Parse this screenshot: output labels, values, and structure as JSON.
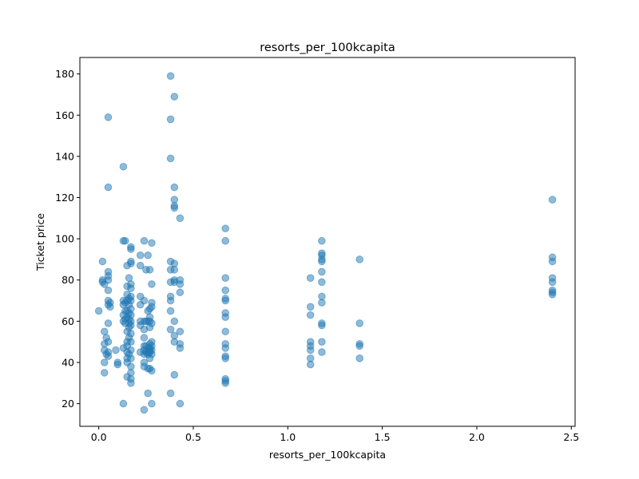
{
  "chart_data": {
    "type": "scatter",
    "title": "resorts_per_100kcapita",
    "xlabel": "resorts_per_100kcapita",
    "ylabel": "Ticket price",
    "xlim": [
      -0.1,
      2.52
    ],
    "ylim": [
      9,
      188
    ],
    "xticks": [
      0.0,
      0.5,
      1.0,
      1.5,
      2.0,
      2.5
    ],
    "xtick_labels": [
      "0.0",
      "0.5",
      "1.0",
      "1.5",
      "2.0",
      "2.5"
    ],
    "yticks": [
      20,
      40,
      60,
      80,
      100,
      120,
      140,
      160,
      180
    ],
    "ytick_labels": [
      "20",
      "40",
      "60",
      "80",
      "100",
      "120",
      "140",
      "160",
      "180"
    ],
    "grid": false,
    "marker_color": "#1f77b4",
    "marker_alpha": 0.5,
    "points": [
      [
        0.0,
        65
      ],
      [
        0.02,
        79
      ],
      [
        0.02,
        80
      ],
      [
        0.02,
        89
      ],
      [
        0.03,
        78
      ],
      [
        0.03,
        55
      ],
      [
        0.03,
        49
      ],
      [
        0.03,
        46
      ],
      [
        0.03,
        40
      ],
      [
        0.03,
        35
      ],
      [
        0.04,
        52
      ],
      [
        0.04,
        44
      ],
      [
        0.05,
        159
      ],
      [
        0.05,
        125
      ],
      [
        0.05,
        84
      ],
      [
        0.05,
        82
      ],
      [
        0.05,
        80
      ],
      [
        0.05,
        75
      ],
      [
        0.05,
        70
      ],
      [
        0.05,
        68
      ],
      [
        0.05,
        59
      ],
      [
        0.05,
        50
      ],
      [
        0.05,
        45
      ],
      [
        0.05,
        43
      ],
      [
        0.06,
        69
      ],
      [
        0.06,
        67
      ],
      [
        0.09,
        46
      ],
      [
        0.1,
        40
      ],
      [
        0.1,
        39
      ],
      [
        0.13,
        135
      ],
      [
        0.13,
        99
      ],
      [
        0.13,
        70
      ],
      [
        0.13,
        68
      ],
      [
        0.13,
        63
      ],
      [
        0.13,
        60
      ],
      [
        0.13,
        47
      ],
      [
        0.13,
        20
      ],
      [
        0.14,
        99
      ],
      [
        0.14,
        69
      ],
      [
        0.14,
        65
      ],
      [
        0.14,
        61
      ],
      [
        0.14,
        59
      ],
      [
        0.15,
        87
      ],
      [
        0.15,
        77
      ],
      [
        0.15,
        73
      ],
      [
        0.15,
        70
      ],
      [
        0.15,
        65
      ],
      [
        0.15,
        62
      ],
      [
        0.15,
        55
      ],
      [
        0.15,
        50
      ],
      [
        0.15,
        48
      ],
      [
        0.15,
        45
      ],
      [
        0.15,
        42
      ],
      [
        0.15,
        40
      ],
      [
        0.15,
        33
      ],
      [
        0.16,
        81
      ],
      [
        0.16,
        71
      ],
      [
        0.16,
        68
      ],
      [
        0.16,
        64
      ],
      [
        0.16,
        61
      ],
      [
        0.16,
        59
      ],
      [
        0.16,
        57
      ],
      [
        0.16,
        52
      ],
      [
        0.16,
        44
      ],
      [
        0.17,
        96
      ],
      [
        0.17,
        95
      ],
      [
        0.17,
        89
      ],
      [
        0.17,
        88
      ],
      [
        0.17,
        78
      ],
      [
        0.17,
        76
      ],
      [
        0.17,
        72
      ],
      [
        0.17,
        70
      ],
      [
        0.17,
        66
      ],
      [
        0.17,
        63
      ],
      [
        0.17,
        60
      ],
      [
        0.17,
        58
      ],
      [
        0.17,
        54
      ],
      [
        0.17,
        50
      ],
      [
        0.17,
        46
      ],
      [
        0.17,
        42
      ],
      [
        0.17,
        38
      ],
      [
        0.17,
        35
      ],
      [
        0.17,
        32
      ],
      [
        0.17,
        30
      ],
      [
        0.22,
        92
      ],
      [
        0.22,
        87
      ],
      [
        0.22,
        72
      ],
      [
        0.22,
        68
      ],
      [
        0.22,
        60
      ],
      [
        0.22,
        58
      ],
      [
        0.22,
        45
      ],
      [
        0.24,
        99
      ],
      [
        0.24,
        70
      ],
      [
        0.24,
        60
      ],
      [
        0.24,
        56
      ],
      [
        0.24,
        52
      ],
      [
        0.24,
        48
      ],
      [
        0.24,
        46
      ],
      [
        0.24,
        44
      ],
      [
        0.24,
        40
      ],
      [
        0.24,
        38
      ],
      [
        0.24,
        17
      ],
      [
        0.25,
        85
      ],
      [
        0.25,
        60
      ],
      [
        0.25,
        48
      ],
      [
        0.25,
        45
      ],
      [
        0.26,
        92
      ],
      [
        0.26,
        65
      ],
      [
        0.26,
        60
      ],
      [
        0.26,
        47
      ],
      [
        0.26,
        45
      ],
      [
        0.26,
        44
      ],
      [
        0.26,
        37
      ],
      [
        0.26,
        25
      ],
      [
        0.27,
        85
      ],
      [
        0.27,
        66
      ],
      [
        0.27,
        62
      ],
      [
        0.27,
        60
      ],
      [
        0.27,
        57
      ],
      [
        0.27,
        49
      ],
      [
        0.27,
        47
      ],
      [
        0.27,
        46
      ],
      [
        0.27,
        45
      ],
      [
        0.27,
        42
      ],
      [
        0.27,
        37
      ],
      [
        0.28,
        98
      ],
      [
        0.28,
        78
      ],
      [
        0.28,
        69
      ],
      [
        0.28,
        67
      ],
      [
        0.28,
        59
      ],
      [
        0.28,
        50
      ],
      [
        0.28,
        48
      ],
      [
        0.28,
        46
      ],
      [
        0.28,
        44
      ],
      [
        0.28,
        36
      ],
      [
        0.28,
        20
      ],
      [
        0.38,
        179
      ],
      [
        0.38,
        158
      ],
      [
        0.38,
        139
      ],
      [
        0.38,
        89
      ],
      [
        0.38,
        85
      ],
      [
        0.38,
        79
      ],
      [
        0.38,
        72
      ],
      [
        0.38,
        70
      ],
      [
        0.38,
        65
      ],
      [
        0.38,
        56
      ],
      [
        0.38,
        25
      ],
      [
        0.4,
        169
      ],
      [
        0.4,
        125
      ],
      [
        0.4,
        119
      ],
      [
        0.4,
        116
      ],
      [
        0.4,
        115
      ],
      [
        0.4,
        88
      ],
      [
        0.4,
        85
      ],
      [
        0.4,
        79
      ],
      [
        0.4,
        80
      ],
      [
        0.4,
        60
      ],
      [
        0.4,
        53
      ],
      [
        0.4,
        50
      ],
      [
        0.4,
        34
      ],
      [
        0.43,
        110
      ],
      [
        0.43,
        80
      ],
      [
        0.43,
        78
      ],
      [
        0.43,
        74
      ],
      [
        0.43,
        55
      ],
      [
        0.43,
        49
      ],
      [
        0.43,
        47
      ],
      [
        0.43,
        20
      ],
      [
        0.67,
        105
      ],
      [
        0.67,
        99
      ],
      [
        0.67,
        81
      ],
      [
        0.67,
        75
      ],
      [
        0.67,
        71
      ],
      [
        0.67,
        70
      ],
      [
        0.67,
        64
      ],
      [
        0.67,
        62
      ],
      [
        0.67,
        55
      ],
      [
        0.67,
        49
      ],
      [
        0.67,
        47
      ],
      [
        0.67,
        43
      ],
      [
        0.67,
        42
      ],
      [
        0.67,
        32
      ],
      [
        0.67,
        31
      ],
      [
        0.67,
        30
      ],
      [
        1.12,
        81
      ],
      [
        1.12,
        67
      ],
      [
        1.12,
        63
      ],
      [
        1.12,
        50
      ],
      [
        1.12,
        48
      ],
      [
        1.12,
        46
      ],
      [
        1.12,
        42
      ],
      [
        1.12,
        39
      ],
      [
        1.18,
        99
      ],
      [
        1.18,
        93
      ],
      [
        1.18,
        92
      ],
      [
        1.18,
        90
      ],
      [
        1.18,
        89
      ],
      [
        1.18,
        84
      ],
      [
        1.18,
        79
      ],
      [
        1.18,
        72
      ],
      [
        1.18,
        69
      ],
      [
        1.18,
        59
      ],
      [
        1.18,
        58
      ],
      [
        1.18,
        50
      ],
      [
        1.18,
        45
      ],
      [
        1.38,
        90
      ],
      [
        1.38,
        59
      ],
      [
        1.38,
        49
      ],
      [
        1.38,
        48
      ],
      [
        1.38,
        42
      ],
      [
        2.4,
        119
      ],
      [
        2.4,
        91
      ],
      [
        2.4,
        89
      ],
      [
        2.4,
        81
      ],
      [
        2.4,
        79
      ],
      [
        2.4,
        75
      ],
      [
        2.4,
        74
      ],
      [
        2.4,
        73
      ]
    ]
  }
}
